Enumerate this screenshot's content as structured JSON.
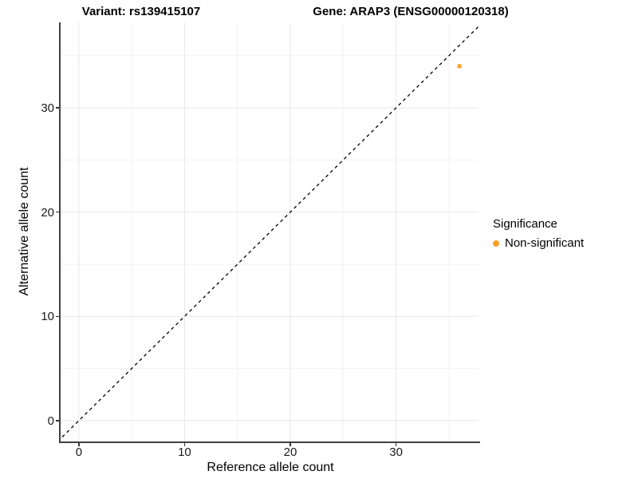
{
  "titles": {
    "variant": "Variant: rs139415107",
    "gene": "Gene: ARAP3 (ENSG00000120318)"
  },
  "axes": {
    "x_label": "Reference allele count",
    "y_label": "Alternative allele count"
  },
  "legend": {
    "title": "Significance",
    "items": [
      {
        "label": "Non-significant",
        "color": "#F9A026"
      }
    ]
  },
  "colors": {
    "point_orange": "#F9A026",
    "reference_line": "#000000"
  },
  "chart_data": {
    "type": "scatter",
    "title": "Variant: rs139415107 | Gene: ARAP3 (ENSG00000120318)",
    "xlabel": "Reference allele count",
    "ylabel": "Alternative allele count",
    "xlim": [
      -1.8,
      37.8
    ],
    "ylim": [
      -2.0,
      38.2
    ],
    "x_ticks": [
      0,
      10,
      20,
      30
    ],
    "y_ticks": [
      0,
      10,
      20,
      30
    ],
    "x_minor_ticks": [
      5,
      15,
      25,
      35
    ],
    "y_minor_ticks": [
      5,
      15,
      25,
      35
    ],
    "grid": true,
    "legend_position": "right",
    "series": [
      {
        "name": "Non-significant",
        "color": "#F9A026",
        "points": [
          {
            "x": 36,
            "y": 34
          }
        ]
      }
    ],
    "reference_line": {
      "type": "identity y=x",
      "style": "dashed",
      "color": "#000000"
    }
  }
}
